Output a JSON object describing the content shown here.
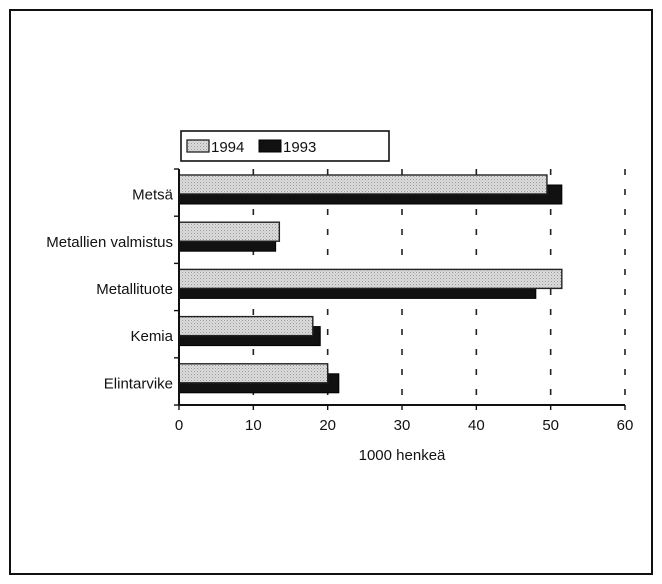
{
  "chart_data": {
    "type": "bar",
    "orientation": "horizontal",
    "categories": [
      "Metsä",
      "Metallien valmistus",
      "Metallituote",
      "Kemia",
      "Elintarvike"
    ],
    "series": [
      {
        "name": "1994",
        "values": [
          49.5,
          13.5,
          51.5,
          18.0,
          20.0
        ],
        "color": "#d4d4d4",
        "pattern": "dotted-light"
      },
      {
        "name": "1993",
        "values": [
          51.5,
          13.0,
          48.0,
          19.0,
          21.5
        ],
        "color": "#111111",
        "pattern": "solid-dark"
      }
    ],
    "xlabel": "1000 henkeä",
    "ylabel": "",
    "title": "",
    "xlim": [
      0,
      60
    ],
    "xticks": [
      "0",
      "10",
      "20",
      "30",
      "40",
      "50",
      "60"
    ],
    "grid": "vertical-dashed",
    "legend_position": "top-left"
  }
}
